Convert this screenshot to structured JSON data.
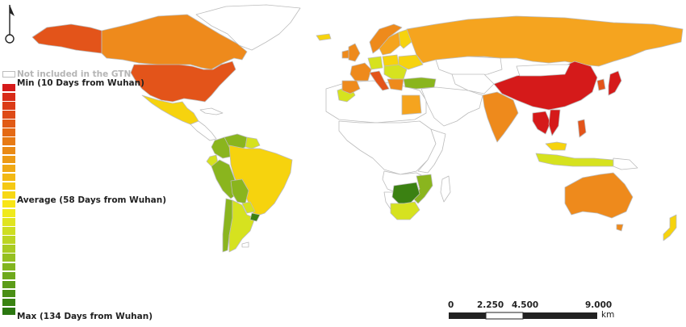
{
  "legend": {
    "not_included": "Not included in the GTN",
    "min": "Min (10 Days from Wuhan)",
    "average": "Average (58 Days from Wuhan)",
    "max": "Max (134 Days from Wuhan)",
    "ramp": [
      "#d51a1a",
      "#d82b18",
      "#db3b17",
      "#de4a16",
      "#e15a15",
      "#e46914",
      "#e77a14",
      "#ea8a14",
      "#ed9a14",
      "#f0a914",
      "#f3b914",
      "#f5c914",
      "#f7d814",
      "#f8e516",
      "#f0ea1c",
      "#e0e41f",
      "#cede21",
      "#bcd522",
      "#a9cb22",
      "#95c021",
      "#82b51f",
      "#6ea91c",
      "#5b9c18",
      "#4a8f15",
      "#3a8312",
      "#2b7710"
    ]
  },
  "scale_bar": {
    "ticks": [
      "0",
      "2.250",
      "4.500",
      "9.000"
    ],
    "unit": "km"
  },
  "north_arrow": {
    "icon": "north-arrow-icon"
  },
  "colors": {
    "no_data": "#ffffff",
    "border": "#bcbcbc",
    "min": "#d51a1a",
    "red_orange": "#e3541a",
    "orange": "#ee8a1c",
    "light_orange": "#f5a41f",
    "yellow": "#f6d30e",
    "yellow_green": "#d6e21f",
    "green": "#8ab51e",
    "dark_green": "#3b8112"
  }
}
